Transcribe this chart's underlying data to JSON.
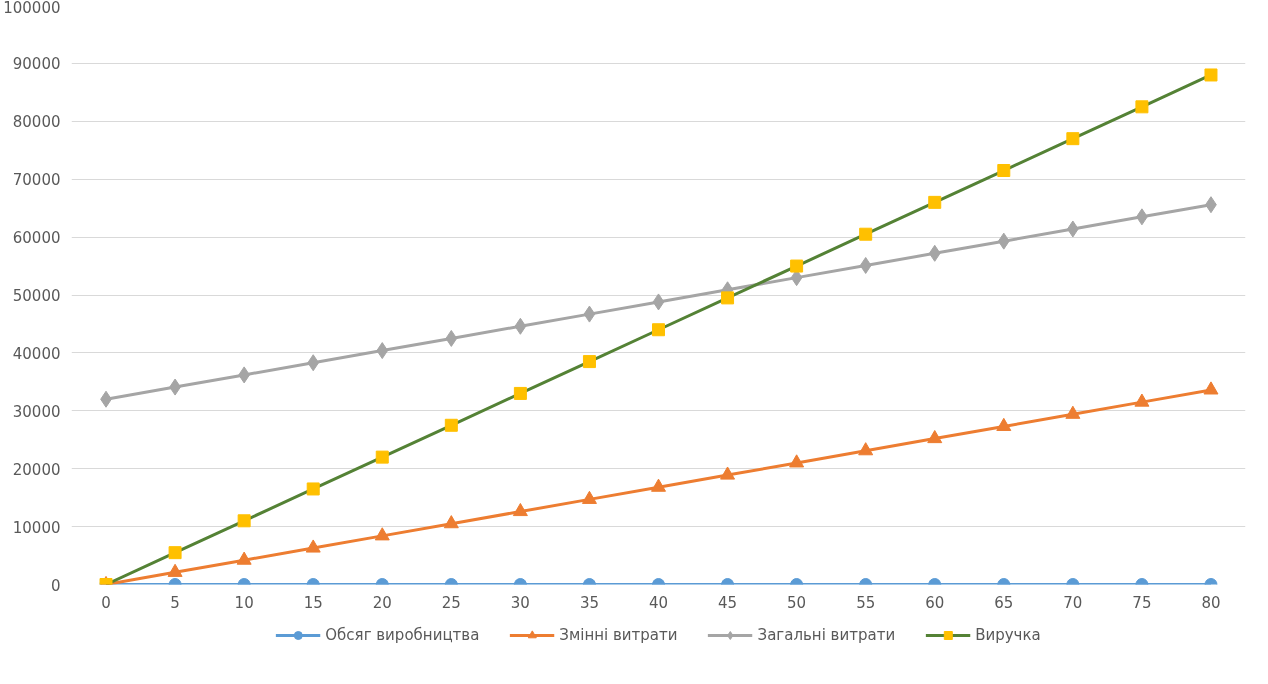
{
  "chart_data": {
    "type": "line",
    "categories": [
      "0",
      "5",
      "10",
      "15",
      "20",
      "25",
      "30",
      "35",
      "40",
      "45",
      "50",
      "55",
      "60",
      "65",
      "70",
      "75",
      "80"
    ],
    "series": [
      {
        "name": "Обсяг виробництва",
        "color": "#5b9bd5",
        "marker": "circle",
        "values": [
          0,
          0,
          0,
          0,
          0,
          0,
          0,
          0,
          0,
          0,
          0,
          0,
          0,
          0,
          0,
          0,
          0
        ]
      },
      {
        "name": "Змінні витрати",
        "color": "#ed7d31",
        "marker": "triangle",
        "values": [
          0,
          2100,
          4200,
          6300,
          8400,
          10500,
          12600,
          14700,
          16800,
          18900,
          21000,
          23100,
          25200,
          27300,
          29400,
          31500,
          33600
        ]
      },
      {
        "name": "Загальні витрати",
        "color": "#a5a5a5",
        "marker": "diamond",
        "values": [
          32000,
          34100,
          36200,
          38300,
          40400,
          42500,
          44600,
          46700,
          48800,
          50900,
          53000,
          55100,
          57200,
          59300,
          61400,
          63500,
          65600
        ]
      },
      {
        "name": "Виручка",
        "color": "#548235",
        "colors": [
          "#ffc000",
          "#ffc000",
          "#ffc000",
          "#ffc000",
          "#ffc000",
          "#ffc000",
          "#ffc000",
          "#ffc000",
          "#ffc000",
          "#ffc000",
          "#ffc000",
          "#ffc000",
          "#ffc000",
          "#ffc000",
          "#ffc000",
          "#ffc000",
          "#ffc000"
        ],
        "marker": "square",
        "values": [
          0,
          5500,
          11000,
          16500,
          22000,
          27500,
          33000,
          38500,
          44000,
          49500,
          55000,
          60500,
          66000,
          71500,
          77000,
          82500,
          88000
        ]
      }
    ],
    "ylim": [
      0,
      100000
    ],
    "yticks": [
      0,
      10000,
      20000,
      30000,
      40000,
      50000,
      60000,
      70000,
      80000,
      90000,
      100000
    ],
    "grid": "y",
    "legend": "bottom"
  }
}
